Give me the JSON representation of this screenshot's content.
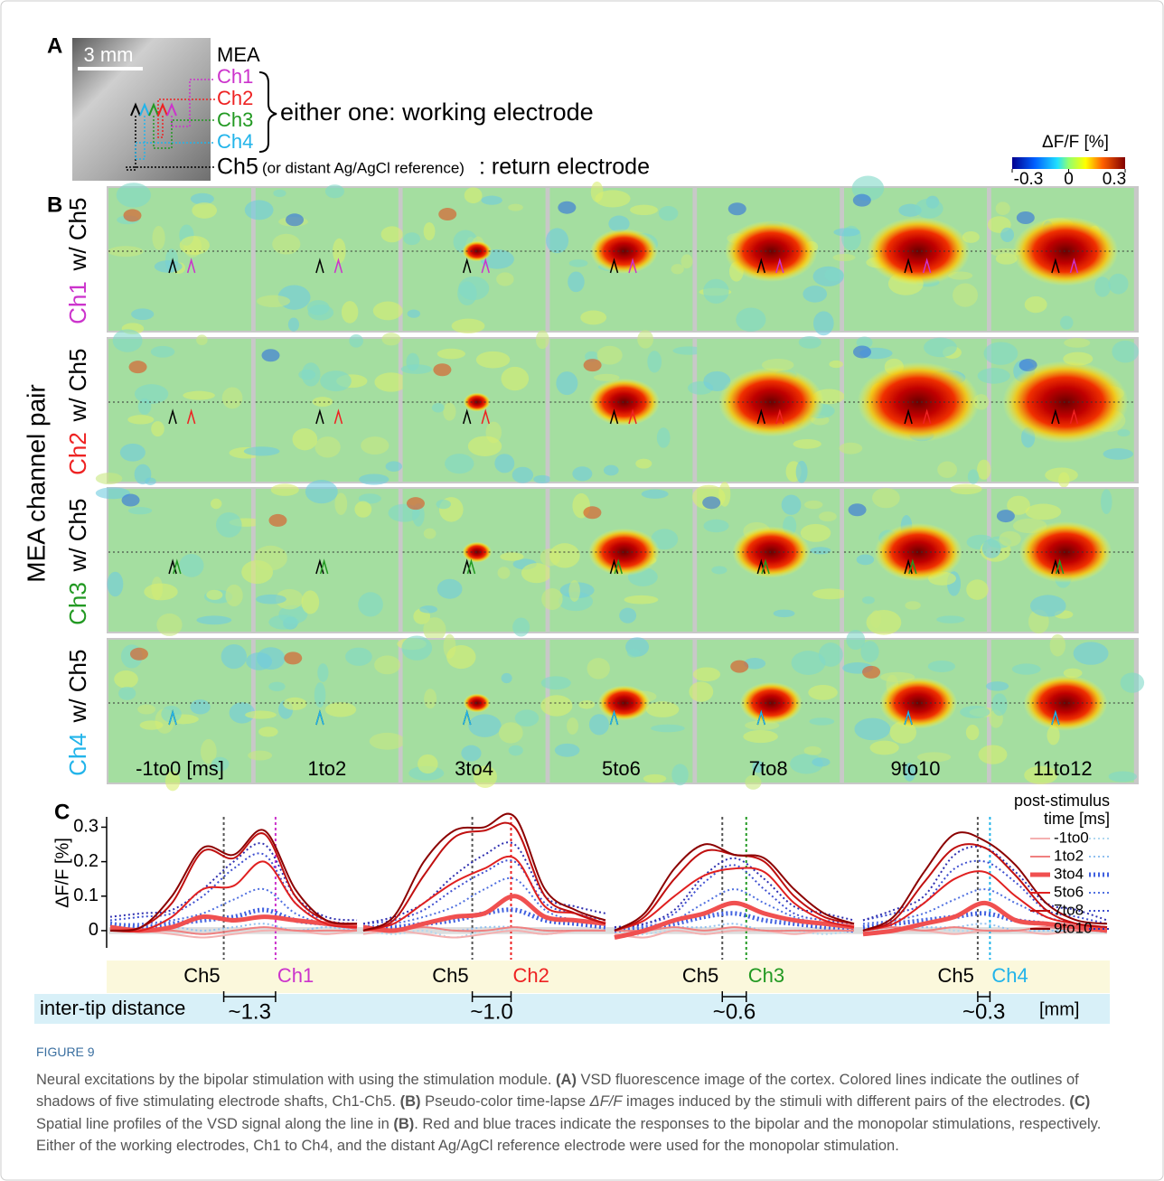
{
  "panel_a": {
    "label": "A",
    "scale": "3 mm",
    "mea": "MEA",
    "channels": [
      {
        "name": "Ch1",
        "color": "#cc33cc"
      },
      {
        "name": "Ch2",
        "color": "#ee2222"
      },
      {
        "name": "Ch3",
        "color": "#229922"
      },
      {
        "name": "Ch4",
        "color": "#22b4ea"
      }
    ],
    "working": "either one: working electrode",
    "ch5": "Ch5",
    "reference": "(or distant Ag/AgCl reference)",
    "return": ": return electrode"
  },
  "colorbar": {
    "title": "ΔF/F [%]",
    "lim": [
      -0.3,
      0.3
    ],
    "ticks": [
      -0.3,
      0,
      0.3
    ]
  },
  "panel_b": {
    "label": "B",
    "axis_title": "MEA channel pair",
    "pair": "w/ Ch5",
    "columns": [
      "-1to0 [ms]",
      "1to2",
      "3to4",
      "5to6",
      "7to8",
      "9to10",
      "11to12"
    ]
  },
  "panel_c": {
    "label": "C",
    "ylabel": "ΔF/F [%]",
    "ylim": [
      -0.05,
      0.33
    ],
    "yticks": [
      0,
      0.1,
      0.2,
      0.3
    ],
    "legend_title": [
      "post-stimulus",
      "time [ms]"
    ],
    "times": [
      {
        "name": "-1to0",
        "bipolar_color": "#f4b0b0",
        "monopolar_color": "#b0d8f0",
        "width": 2
      },
      {
        "name": "1to2",
        "bipolar_color": "#f08080",
        "monopolar_color": "#90c0f0",
        "width": 2
      },
      {
        "name": "3to4",
        "bipolar_color": "#f05050",
        "monopolar_color": "#4060e0",
        "width": 5
      },
      {
        "name": "5to6",
        "bipolar_color": "#e02020",
        "monopolar_color": "#5070e0",
        "width": 2
      },
      {
        "name": "7to8",
        "bipolar_color": "#c01010",
        "monopolar_color": "#4050d0",
        "width": 2
      },
      {
        "name": "9to10",
        "bipolar_color": "#8b0000",
        "monopolar_color": "#3030b0",
        "width": 2
      }
    ],
    "groups": [
      {
        "distance": "~1.3",
        "bipolar": [
          [
            0,
            0,
            -0.01,
            -0.02,
            -0.01,
            0,
            0,
            -0.01,
            0
          ],
          [
            0,
            0,
            0,
            -0.01,
            0,
            0.01,
            0,
            0,
            0
          ],
          [
            0.01,
            0,
            0.01,
            0.04,
            0.03,
            0.04,
            0.03,
            0.02,
            0.01
          ],
          [
            0,
            0,
            0.04,
            0.12,
            0.13,
            0.2,
            0.08,
            0.02,
            0.01
          ],
          [
            0,
            0.01,
            0.08,
            0.23,
            0.21,
            0.28,
            0.1,
            0.03,
            0.02
          ],
          [
            0,
            0.01,
            0.1,
            0.24,
            0.22,
            0.29,
            0.12,
            0.03,
            0.02
          ]
        ],
        "monopolar": [
          [
            0,
            0.01,
            0,
            -0.01,
            0,
            0.01,
            0,
            0.01,
            0
          ],
          [
            0.01,
            0,
            0.01,
            0,
            0.01,
            0.02,
            0,
            0.01,
            0
          ],
          [
            0.02,
            0.01,
            0.02,
            0.03,
            0.04,
            0.06,
            0.03,
            0.02,
            0.01
          ],
          [
            0.02,
            0.02,
            0.03,
            0.05,
            0.09,
            0.12,
            0.05,
            0.02,
            0.01
          ],
          [
            0.03,
            0.04,
            0.05,
            0.1,
            0.18,
            0.22,
            0.08,
            0.03,
            0.02
          ],
          [
            0.04,
            0.05,
            0.06,
            0.12,
            0.2,
            0.25,
            0.1,
            0.04,
            0.03
          ]
        ]
      },
      {
        "distance": "~1.0",
        "bipolar": [
          [
            -0.01,
            0,
            -0.01,
            -0.02,
            -0.01,
            0,
            -0.01,
            0,
            0
          ],
          [
            0,
            0,
            0.01,
            0,
            0,
            0.01,
            0,
            0,
            0
          ],
          [
            0.01,
            0,
            0.02,
            0.04,
            0.05,
            0.1,
            0.04,
            0.03,
            0.02
          ],
          [
            0,
            0.02,
            0.08,
            0.14,
            0.18,
            0.21,
            0.07,
            0.05,
            0.02
          ],
          [
            0,
            0.03,
            0.16,
            0.27,
            0.29,
            0.3,
            0.1,
            0.05,
            0.02
          ],
          [
            0,
            0.04,
            0.2,
            0.29,
            0.3,
            0.33,
            0.12,
            0.06,
            0.03
          ]
        ],
        "monopolar": [
          [
            0,
            -0.01,
            0,
            -0.02,
            0,
            0,
            -0.01,
            0,
            0
          ],
          [
            0,
            0,
            0.01,
            0,
            0.01,
            0.01,
            0,
            0,
            0
          ],
          [
            0.01,
            0.01,
            0.02,
            0.03,
            0.05,
            0.06,
            0.03,
            0.02,
            0.01
          ],
          [
            0.01,
            0.02,
            0.04,
            0.07,
            0.12,
            0.15,
            0.06,
            0.03,
            0.02
          ],
          [
            0.02,
            0.03,
            0.06,
            0.12,
            0.17,
            0.2,
            0.08,
            0.05,
            0.03
          ],
          [
            0.02,
            0.04,
            0.08,
            0.16,
            0.22,
            0.25,
            0.1,
            0.07,
            0.05
          ]
        ]
      },
      {
        "distance": "~0.6",
        "bipolar": [
          [
            -0.01,
            -0.02,
            0,
            -0.01,
            0,
            0,
            -0.01,
            0,
            0
          ],
          [
            0,
            0,
            0.01,
            0,
            0.01,
            0,
            0,
            0,
            0
          ],
          [
            -0.02,
            0,
            0.03,
            0.05,
            0.08,
            0.05,
            0.03,
            0.02,
            0.01
          ],
          [
            0,
            0.03,
            0.1,
            0.16,
            0.18,
            0.17,
            0.08,
            0.03,
            0.01
          ],
          [
            0,
            0.04,
            0.15,
            0.23,
            0.22,
            0.2,
            0.1,
            0.04,
            0.02
          ],
          [
            0,
            0.05,
            0.18,
            0.25,
            0.22,
            0.21,
            0.12,
            0.05,
            0.02
          ]
        ],
        "monopolar": [
          [
            -0.02,
            -0.01,
            0,
            -0.01,
            0,
            0,
            0,
            -0.01,
            0
          ],
          [
            0,
            0,
            0.01,
            0.01,
            0.02,
            0,
            0,
            0,
            0
          ],
          [
            0,
            0.01,
            0.02,
            0.04,
            0.05,
            0.03,
            0.02,
            0.01,
            0
          ],
          [
            0,
            0.01,
            0.03,
            0.08,
            0.12,
            0.08,
            0.04,
            0.02,
            0.01
          ],
          [
            0.01,
            0.02,
            0.05,
            0.14,
            0.19,
            0.12,
            0.05,
            0.03,
            0.02
          ],
          [
            0.01,
            0.02,
            0.06,
            0.16,
            0.21,
            0.15,
            0.07,
            0.05,
            0.03
          ]
        ]
      },
      {
        "distance": "~0.3",
        "bipolar": [
          [
            -0.01,
            0,
            0,
            -0.01,
            0,
            0,
            -0.01,
            0,
            0
          ],
          [
            0,
            0.01,
            0,
            0.01,
            0,
            0,
            0.01,
            0,
            0
          ],
          [
            -0.01,
            0,
            0.02,
            0.04,
            0.08,
            0.03,
            0.02,
            0.01,
            0
          ],
          [
            0,
            0.02,
            0.08,
            0.15,
            0.17,
            0.1,
            0.04,
            0.02,
            0.01
          ],
          [
            0,
            0.03,
            0.14,
            0.24,
            0.24,
            0.16,
            0.06,
            0.02,
            0.01
          ],
          [
            0,
            0.04,
            0.17,
            0.28,
            0.26,
            0.19,
            0.08,
            0.03,
            0.02
          ]
        ],
        "monopolar": [
          [
            0,
            0,
            0.01,
            0,
            0,
            0,
            0,
            0,
            0
          ],
          [
            0,
            0.01,
            0.01,
            0.01,
            0.02,
            0,
            0,
            0,
            0
          ],
          [
            0.01,
            0.02,
            0.03,
            0.04,
            0.05,
            0.03,
            0.02,
            0.01,
            0
          ],
          [
            0.02,
            0.03,
            0.05,
            0.09,
            0.12,
            0.08,
            0.04,
            0.02,
            0.01
          ],
          [
            0.03,
            0.05,
            0.08,
            0.18,
            0.2,
            0.14,
            0.06,
            0.04,
            0.02
          ],
          [
            0.03,
            0.06,
            0.1,
            0.22,
            0.24,
            0.17,
            0.08,
            0.06,
            0.03
          ]
        ]
      }
    ],
    "inter_tip": "inter-tip distance",
    "unit": "[mm]"
  },
  "caption": {
    "figure": "FIGURE 9",
    "segments": [
      "Neural excitations by the bipolar stimulation with using the stimulation module. ",
      "(A)",
      " VSD fluorescence image of the cortex. Colored lines indicate the outlines of shadows of five stimulating electrode shafts, Ch1-Ch5. ",
      "(B)",
      " Pseudo-color time-lapse ",
      "ΔF/F",
      " images induced by the stimuli with different pairs of the electrodes. ",
      "(C)",
      " Spatial line profiles of the VSD signal along the line in ",
      "(B)",
      ". Red and blue traces indicate the responses to the bipolar and the monopolar stimulations, respectively. Either of the working electrodes, Ch1 to Ch4, and the distant Ag/AgCl reference electrode were used for the monopolar stimulation."
    ]
  }
}
